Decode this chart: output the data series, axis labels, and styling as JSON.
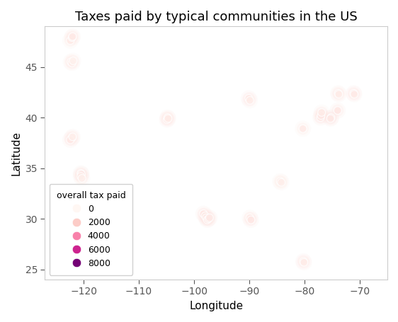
{
  "title": "Taxes paid by typical communities in the US",
  "xlabel": "Longitude",
  "ylabel": "Latitude",
  "xlim": [
    -127,
    -65
  ],
  "ylim": [
    24,
    49
  ],
  "points": [
    {
      "lon": -122.4,
      "lat": 47.6,
      "tax": 600
    },
    {
      "lon": -122.1,
      "lat": 47.9,
      "tax": 400
    },
    {
      "lon": -122.0,
      "lat": 48.0,
      "tax": 700
    },
    {
      "lon": -122.3,
      "lat": 45.5,
      "tax": 500
    },
    {
      "lon": -122.1,
      "lat": 45.4,
      "tax": 600
    },
    {
      "lon": -121.9,
      "lat": 45.6,
      "tax": 300
    },
    {
      "lon": -122.1,
      "lat": 38.0,
      "tax": 700
    },
    {
      "lon": -122.4,
      "lat": 37.8,
      "tax": 800
    },
    {
      "lon": -122.0,
      "lat": 38.1,
      "tax": 400
    },
    {
      "lon": -120.5,
      "lat": 34.5,
      "tax": 500
    },
    {
      "lon": -120.4,
      "lat": 34.4,
      "tax": 900
    },
    {
      "lon": -120.5,
      "lat": 34.2,
      "tax": 600
    },
    {
      "lon": -120.3,
      "lat": 34.0,
      "tax": 400
    },
    {
      "lon": -104.9,
      "lat": 39.8,
      "tax": 700
    },
    {
      "lon": -104.8,
      "lat": 40.0,
      "tax": 500
    },
    {
      "lon": -104.7,
      "lat": 39.9,
      "tax": 600
    },
    {
      "lon": -98.3,
      "lat": 30.5,
      "tax": 800
    },
    {
      "lon": -98.0,
      "lat": 30.3,
      "tax": 600
    },
    {
      "lon": -97.8,
      "lat": 30.1,
      "tax": 700
    },
    {
      "lon": -97.6,
      "lat": 29.9,
      "tax": 900
    },
    {
      "lon": -97.4,
      "lat": 30.0,
      "tax": 500
    },
    {
      "lon": -97.2,
      "lat": 30.1,
      "tax": 700
    },
    {
      "lon": -89.9,
      "lat": 30.1,
      "tax": 600
    },
    {
      "lon": -89.7,
      "lat": 29.9,
      "tax": 800
    },
    {
      "lon": -90.1,
      "lat": 41.9,
      "tax": 700
    },
    {
      "lon": -89.9,
      "lat": 41.7,
      "tax": 500
    },
    {
      "lon": -84.4,
      "lat": 33.7,
      "tax": 600
    },
    {
      "lon": -84.2,
      "lat": 33.6,
      "tax": 400
    },
    {
      "lon": -80.2,
      "lat": 25.8,
      "tax": 700
    },
    {
      "lon": -80.1,
      "lat": 25.7,
      "tax": 500
    },
    {
      "lon": -80.3,
      "lat": 38.9,
      "tax": 600
    },
    {
      "lon": -77.1,
      "lat": 40.0,
      "tax": 800
    },
    {
      "lon": -77.0,
      "lat": 40.2,
      "tax": 700
    },
    {
      "lon": -76.9,
      "lat": 40.5,
      "tax": 600
    },
    {
      "lon": -75.2,
      "lat": 40.0,
      "tax": 900
    },
    {
      "lon": -75.3,
      "lat": 39.9,
      "tax": 700
    },
    {
      "lon": -74.0,
      "lat": 40.7,
      "tax": 800
    },
    {
      "lon": -73.9,
      "lat": 42.4,
      "tax": 600
    },
    {
      "lon": -73.8,
      "lat": 42.3,
      "tax": 500
    },
    {
      "lon": -71.1,
      "lat": 42.4,
      "tax": 700
    },
    {
      "lon": -71.0,
      "lat": 42.3,
      "tax": 600
    }
  ],
  "colormap": "RdPu",
  "legend_title": "overall tax paid",
  "legend_values": [
    0,
    2000,
    4000,
    6000,
    8000
  ],
  "vmin": 0,
  "vmax": 9000,
  "point_size": 60,
  "background_color": "#ffffff",
  "figure_facecolor": "#ffffff",
  "spine_color": "#cccccc",
  "grid": false
}
